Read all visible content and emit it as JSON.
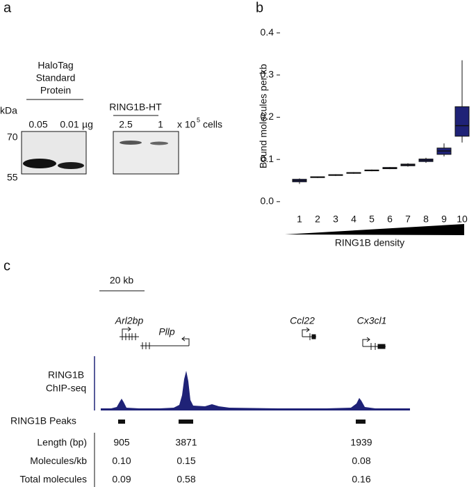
{
  "panel_a": {
    "label": "a",
    "halotag": {
      "title_lines": [
        "HaloTag",
        "Standard",
        "Protein"
      ],
      "unit": "kDa",
      "amounts": [
        "0.05",
        "0.01"
      ],
      "amount_unit": "µg",
      "markers": [
        "70",
        "55"
      ]
    },
    "ring1b": {
      "title": "RING1B-HT",
      "amounts": [
        "2.5",
        "1"
      ],
      "unit_prefix": "x 10",
      "unit_exponent": "5",
      "unit_suffix": "cells"
    }
  },
  "chart_data": {
    "type": "box",
    "panel_label": "b",
    "y_label": "Bound molecules per kb",
    "x_label": "RING1B density",
    "categories": [
      "1",
      "2",
      "3",
      "4",
      "5",
      "6",
      "7",
      "8",
      "9",
      "10"
    ],
    "median": [
      0.05,
      0.058,
      0.063,
      0.068,
      0.074,
      0.079,
      0.087,
      0.098,
      0.12,
      0.18
    ],
    "q1": [
      0.047,
      0.057,
      0.062,
      0.067,
      0.073,
      0.078,
      0.085,
      0.095,
      0.112,
      0.155
    ],
    "q3": [
      0.053,
      0.059,
      0.064,
      0.069,
      0.075,
      0.081,
      0.089,
      0.101,
      0.127,
      0.225
    ],
    "whisker_low": [
      0.042,
      0.056,
      0.061,
      0.066,
      0.072,
      0.077,
      0.083,
      0.092,
      0.107,
      0.14
    ],
    "whisker_high": [
      0.055,
      0.06,
      0.065,
      0.07,
      0.076,
      0.082,
      0.091,
      0.104,
      0.138,
      0.335
    ],
    "color": "#1f2277",
    "ylim": [
      -0.025,
      0.43
    ],
    "yticks": [
      {
        "value": 0,
        "label": "0.0"
      },
      0.1,
      0.2,
      0.3,
      0.4
    ]
  },
  "panel_c": {
    "label": "c",
    "scale_bar": "20 kb",
    "genes": [
      "Arl2bp",
      "Pllp",
      "Ccl22",
      "Cx3cl1"
    ],
    "track_label": [
      "RING1B",
      "ChIP-seq"
    ],
    "peaks_label": "RING1B Peaks",
    "table": {
      "rows": [
        [
          "Length (bp)",
          "905",
          "3871",
          "1939"
        ],
        [
          "Molecules/kb",
          "0.10",
          "0.15",
          "0.08"
        ],
        [
          "Total molecules",
          "0.09",
          "0.58",
          "0.16"
        ]
      ]
    }
  }
}
